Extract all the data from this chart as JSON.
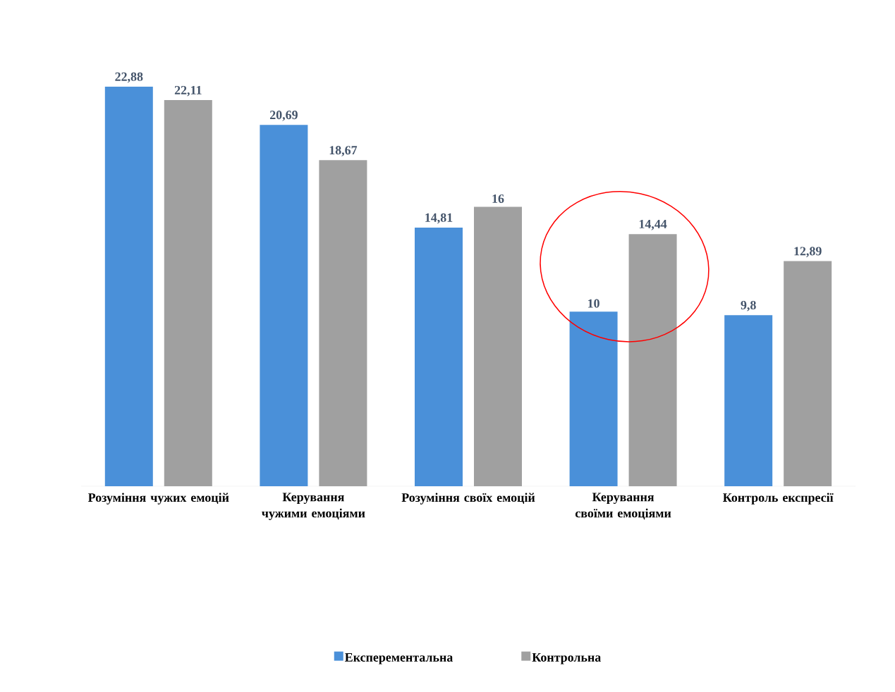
{
  "chart_data": {
    "type": "bar",
    "categories": [
      "Розуміння чужих емоцій",
      "Керування чужими емоціями",
      "Розуміння своїх емоцій",
      "Керування своїми емоціями",
      "Контроль експресії"
    ],
    "series": [
      {
        "name": "Експерементальна",
        "color": "#4a90d9",
        "values": [
          22.88,
          20.69,
          14.81,
          10,
          9.8
        ],
        "value_labels": [
          "22,88",
          "20,69",
          "14,81",
          "10",
          "9,8"
        ]
      },
      {
        "name": "Контрольна",
        "color": "#a0a0a0",
        "values": [
          22.11,
          18.67,
          16,
          14.44,
          12.89
        ],
        "value_labels": [
          "22,11",
          "18,67",
          "16",
          "14,44",
          "12,89"
        ]
      }
    ],
    "tick_labels": "x",
    "legend": "bottom"
  }
}
